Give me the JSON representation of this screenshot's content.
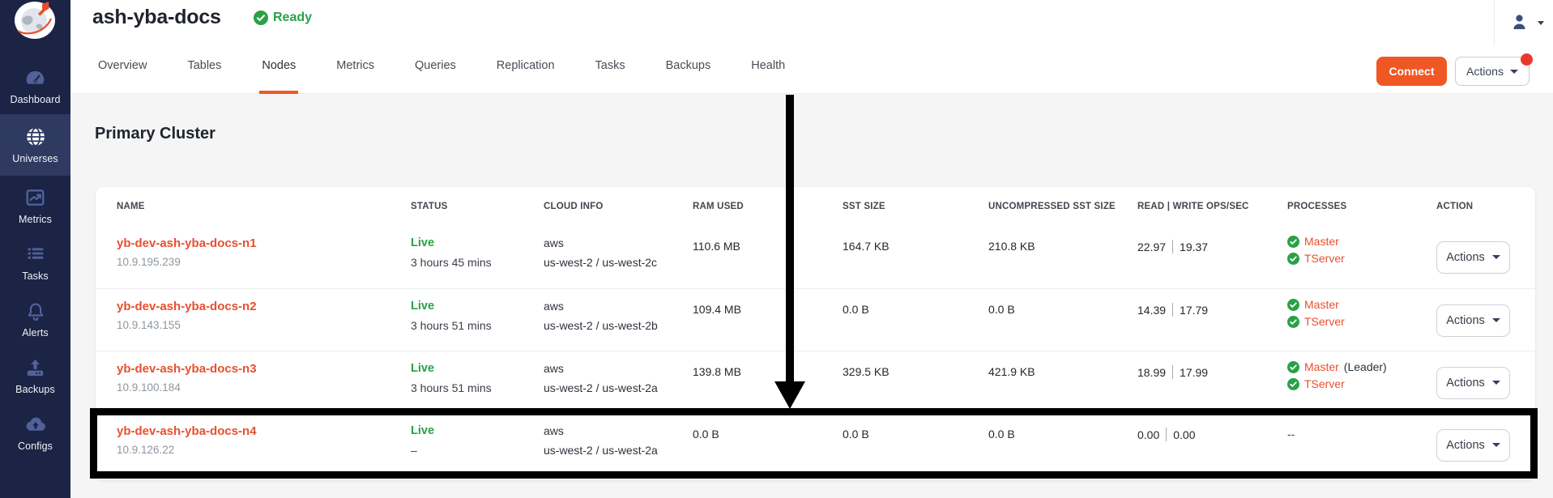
{
  "colors": {
    "accent_orange": "#ef5824",
    "link_orange": "#e8502f",
    "success_green": "#2aa147",
    "sidebar_navy": "#1b2444",
    "sidebar_active_navy": "#2f3a61",
    "notification_red": "#e9392e",
    "annotation_black": "#000000"
  },
  "sidebar": {
    "items": [
      {
        "label": "Dashboard",
        "icon": "dashboard-icon",
        "active": false
      },
      {
        "label": "Universes",
        "icon": "universes-icon",
        "active": true
      },
      {
        "label": "Metrics",
        "icon": "metrics-icon",
        "active": false
      },
      {
        "label": "Tasks",
        "icon": "tasks-icon",
        "active": false
      },
      {
        "label": "Alerts",
        "icon": "alerts-icon",
        "active": false
      },
      {
        "label": "Backups",
        "icon": "backups-icon",
        "active": false
      },
      {
        "label": "Configs",
        "icon": "configs-icon",
        "active": false
      }
    ]
  },
  "header": {
    "title": "ash-yba-docs",
    "status": "Ready",
    "tabs": [
      "Overview",
      "Tables",
      "Nodes",
      "Metrics",
      "Queries",
      "Replication",
      "Tasks",
      "Backups",
      "Health"
    ],
    "active_tab": "Nodes",
    "connect_label": "Connect",
    "actions_label": "Actions"
  },
  "main": {
    "section_title": "Primary Cluster",
    "table": {
      "columns": [
        "NAME",
        "STATUS",
        "CLOUD INFO",
        "RAM USED",
        "SST SIZE",
        "UNCOMPRESSED SST SIZE",
        "READ | WRITE OPS/SEC",
        "PROCESSES",
        "ACTION"
      ],
      "rows": [
        {
          "name": "yb-dev-ash-yba-docs-n1",
          "ip": "10.9.195.239",
          "status": "Live",
          "uptime": "3 hours 45 mins",
          "cloud": "aws",
          "region": "us-west-2 / us-west-2c",
          "ram": "110.6 MB",
          "sst": "164.7 KB",
          "uncompressed_sst": "210.8 KB",
          "read": "22.97",
          "write": "19.37",
          "processes": [
            {
              "label": "Master"
            },
            {
              "label": "TServer"
            }
          ],
          "action_label": "Actions",
          "highlighted": false
        },
        {
          "name": "yb-dev-ash-yba-docs-n2",
          "ip": "10.9.143.155",
          "status": "Live",
          "uptime": "3 hours 51 mins",
          "cloud": "aws",
          "region": "us-west-2 / us-west-2b",
          "ram": "109.4 MB",
          "sst": "0.0 B",
          "uncompressed_sst": "0.0 B",
          "read": "14.39",
          "write": "17.79",
          "processes": [
            {
              "label": "Master"
            },
            {
              "label": "TServer"
            }
          ],
          "action_label": "Actions",
          "highlighted": false
        },
        {
          "name": "yb-dev-ash-yba-docs-n3",
          "ip": "10.9.100.184",
          "status": "Live",
          "uptime": "3 hours 51 mins",
          "cloud": "aws",
          "region": "us-west-2 / us-west-2a",
          "ram": "139.8 MB",
          "sst": "329.5 KB",
          "uncompressed_sst": "421.9 KB",
          "read": "18.99",
          "write": "17.99",
          "processes": [
            {
              "label": "Master",
              "suffix": " (Leader)"
            },
            {
              "label": "TServer"
            }
          ],
          "action_label": "Actions",
          "highlighted": false
        },
        {
          "name": "yb-dev-ash-yba-docs-n4",
          "ip": "10.9.126.22",
          "status": "Live",
          "uptime": "–",
          "cloud": "aws",
          "region": "us-west-2 / us-west-2a",
          "ram": "0.0 B",
          "sst": "0.0 B",
          "uncompressed_sst": "0.0 B",
          "read": "0.00",
          "write": "0.00",
          "processes": [],
          "processes_placeholder": "--",
          "action_label": "Actions",
          "highlighted": true
        }
      ]
    }
  }
}
